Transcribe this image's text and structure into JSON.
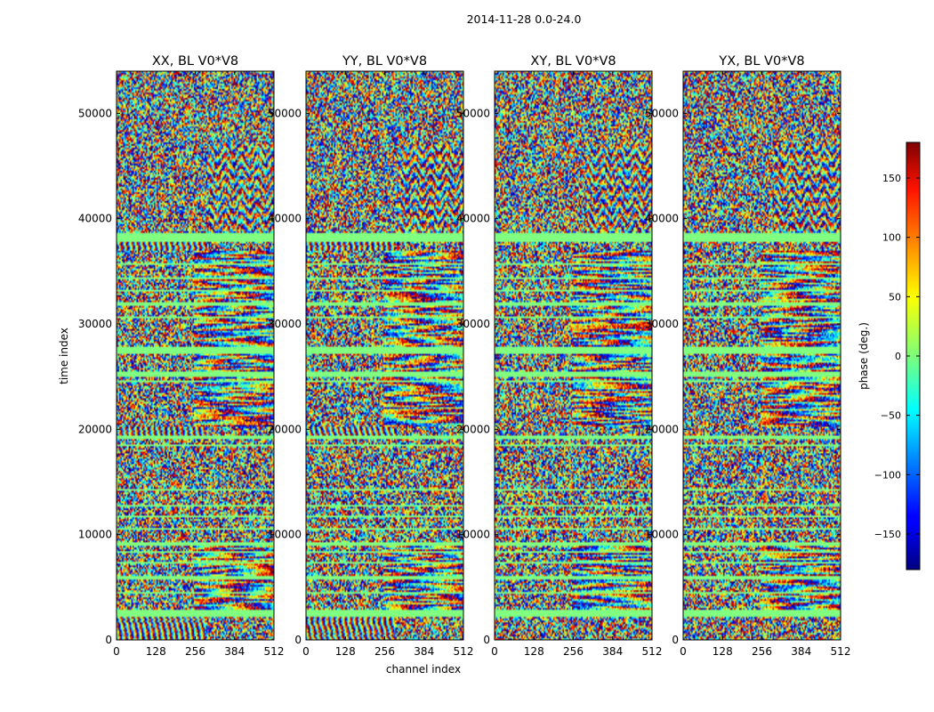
{
  "figure": {
    "suptitle": "2014-11-28 0.0-24.0"
  },
  "chart_data": {
    "type": "heatmap",
    "title": "2014-11-28 0.0-24.0",
    "xlabel": "channel index",
    "ylabel": "time index",
    "xlim": [
      0,
      512
    ],
    "ylim": [
      0,
      54000
    ],
    "xticks": [
      0,
      128,
      256,
      384,
      512
    ],
    "yticks": [
      0,
      10000,
      20000,
      30000,
      40000,
      50000
    ],
    "panels": [
      {
        "title": "XX, BL V0*V8",
        "polarization": "XX"
      },
      {
        "title": "YY, BL V0*V8",
        "polarization": "YY"
      },
      {
        "title": "XY, BL V0*V8",
        "polarization": "XY"
      },
      {
        "title": "YX, BL V0*V8",
        "polarization": "YX"
      }
    ],
    "colorbar": {
      "label": "phase (deg.)",
      "range": [
        -180,
        180
      ],
      "ticks": [
        -150,
        -100,
        -50,
        0,
        50,
        100,
        150
      ],
      "tick_labels": [
        "−150",
        "−100",
        "−50",
        "0",
        "50",
        "100",
        "150"
      ],
      "colormap": "jet"
    },
    "flagged_time_bands": [
      [
        37800,
        38600
      ],
      [
        35600,
        35800
      ],
      [
        34200,
        34400
      ],
      [
        33000,
        33200
      ],
      [
        31800,
        32000
      ],
      [
        30500,
        30700
      ],
      [
        27200,
        27800
      ],
      [
        25000,
        25400
      ],
      [
        24400,
        24600
      ],
      [
        19000,
        19400
      ],
      [
        18400,
        18600
      ],
      [
        14200,
        14400
      ],
      [
        12700,
        12900
      ],
      [
        11600,
        11800
      ],
      [
        10400,
        10600
      ],
      [
        9000,
        9200
      ],
      [
        8200,
        8400
      ],
      [
        7200,
        7400
      ],
      [
        5800,
        6000
      ],
      [
        4400,
        4600
      ],
      [
        2200,
        2800
      ]
    ],
    "noise_rows": [
      [
        0,
        2200,
        "fringe"
      ],
      [
        2200,
        2800,
        "flag"
      ],
      [
        2800,
        5800,
        "mixed"
      ],
      [
        5800,
        9200,
        "mixed"
      ],
      [
        9200,
        14400,
        "noise"
      ],
      [
        14400,
        19000,
        "noise"
      ],
      [
        19000,
        20200,
        "fringe"
      ],
      [
        20200,
        27200,
        "mixed"
      ],
      [
        27200,
        37000,
        "mixed"
      ],
      [
        37000,
        38600,
        "fringe"
      ],
      [
        38600,
        54000,
        "noise"
      ]
    ]
  }
}
